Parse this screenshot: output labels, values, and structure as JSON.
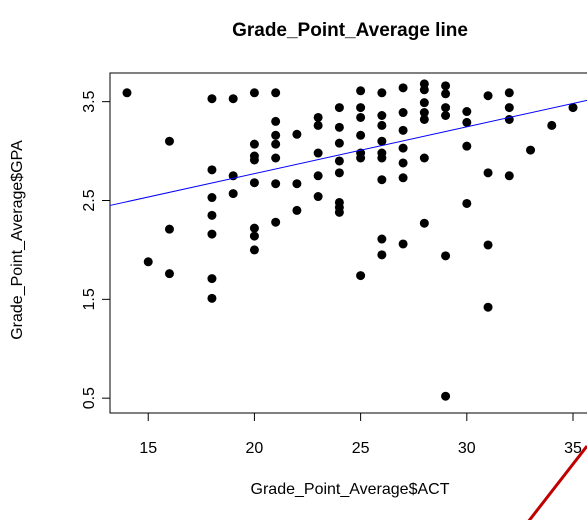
{
  "chart_data": {
    "type": "scatter",
    "title": "Grade_Point_Average line",
    "xlabel": "Grade_Point_Average$ACT",
    "ylabel": "Grade_Point_Average$GPA",
    "xlim": [
      13.2,
      35.8
    ],
    "ylim": [
      0.35,
      3.79
    ],
    "xticks": [
      15,
      20,
      25,
      30,
      35
    ],
    "yticks": [
      0.5,
      1.5,
      2.5,
      3.5
    ],
    "color": "#000000",
    "fit": {
      "color": "#0000ff",
      "x": [
        13.2,
        35.8
      ],
      "y": [
        2.45,
        3.52
      ]
    },
    "x": [
      14,
      15,
      16,
      16,
      16,
      18,
      18,
      18,
      18,
      18,
      18,
      18,
      19,
      19,
      19,
      20,
      20,
      20,
      20,
      20,
      20,
      20,
      20,
      21,
      21,
      21,
      21,
      21,
      21,
      21,
      22,
      22,
      22,
      23,
      23,
      23,
      23,
      23,
      24,
      24,
      24,
      24,
      24,
      24,
      24,
      24,
      25,
      25,
      25,
      25,
      25,
      25,
      25,
      26,
      26,
      26,
      26,
      26,
      26,
      26,
      26,
      26,
      27,
      27,
      27,
      27,
      27,
      27,
      27,
      28,
      28,
      28,
      28,
      28,
      28,
      28,
      29,
      29,
      29,
      29,
      29,
      29,
      30,
      30,
      30,
      30,
      31,
      31,
      31,
      31,
      32,
      32,
      32,
      32,
      33,
      34,
      35
    ],
    "y": [
      3.59,
      1.88,
      3.1,
      2.21,
      1.76,
      3.53,
      2.81,
      2.53,
      2.35,
      2.16,
      1.71,
      1.51,
      3.53,
      2.75,
      2.57,
      3.59,
      3.07,
      2.95,
      2.91,
      2.68,
      2.22,
      2.14,
      2.0,
      3.59,
      3.3,
      3.16,
      3.07,
      2.93,
      2.67,
      2.28,
      3.17,
      2.67,
      2.4,
      3.34,
      3.26,
      2.98,
      2.75,
      2.54,
      3.44,
      3.24,
      3.08,
      2.9,
      2.78,
      2.48,
      2.43,
      2.38,
      3.61,
      3.44,
      3.34,
      3.16,
      2.98,
      2.93,
      1.74,
      3.59,
      3.36,
      3.26,
      3.1,
      2.98,
      2.93,
      2.71,
      2.11,
      1.95,
      3.64,
      3.39,
      3.21,
      3.03,
      2.88,
      2.73,
      2.06,
      3.68,
      3.62,
      3.49,
      3.39,
      3.32,
      2.93,
      2.27,
      3.66,
      3.58,
      3.44,
      3.36,
      1.94,
      0.52,
      3.4,
      3.29,
      3.05,
      2.47,
      3.56,
      2.78,
      2.05,
      1.42,
      3.59,
      3.44,
      3.32,
      2.75,
      3.01,
      3.26,
      3.44
    ]
  }
}
